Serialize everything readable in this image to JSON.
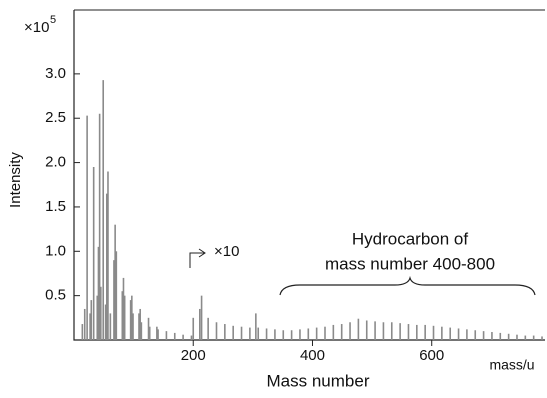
{
  "chart_data": {
    "type": "spectrum",
    "x_label": "Mass number",
    "y_label": "Intensity",
    "x_unit": "mass/u",
    "y_multiplier": "×10",
    "y_multiplier_exp": "5",
    "annotations": [
      "×10",
      "Hydrocarbon of",
      "mass number 400-800"
    ],
    "color": "#8a8a8a",
    "xlim": [
      0,
      790
    ],
    "xticks": [
      200,
      400,
      600
    ],
    "ylim": [
      0,
      3.72
    ],
    "yticks": [
      0.5,
      {
        "value": 1,
        "label": "1.0"
      },
      1.5,
      {
        "value": 2,
        "label": "2.0"
      },
      2.5,
      {
        "value": 3,
        "label": "3.0"
      }
    ],
    "x": [
      14,
      18,
      22,
      27,
      29,
      33,
      39,
      41,
      43,
      45,
      49,
      53,
      55,
      57,
      61,
      67,
      69,
      71,
      81,
      83,
      85,
      95,
      97,
      99,
      109,
      111,
      113,
      125,
      127,
      139,
      141,
      155,
      169,
      183,
      197,
      200,
      211,
      214,
      225,
      239,
      253,
      267,
      281,
      295,
      305,
      309,
      323,
      337,
      351,
      365,
      379,
      393,
      407,
      421,
      435,
      449,
      463,
      477,
      491,
      505,
      519,
      533,
      547,
      561,
      575,
      589,
      603,
      617,
      631,
      645,
      659,
      673,
      687,
      701,
      715,
      729,
      743,
      757,
      771,
      785
    ],
    "values": [
      0.18,
      0.35,
      2.53,
      0.3,
      0.45,
      1.95,
      0.5,
      1.05,
      2.55,
      0.6,
      2.93,
      0.4,
      1.65,
      1.9,
      0.3,
      0.9,
      1.3,
      1.0,
      0.55,
      0.7,
      0.5,
      0.45,
      0.5,
      0.3,
      0.3,
      0.35,
      0.2,
      0.25,
      0.15,
      0.15,
      0.12,
      0.1,
      0.08,
      0.06,
      0.05,
      0.25,
      0.35,
      0.5,
      0.25,
      0.2,
      0.18,
      0.16,
      0.15,
      0.14,
      0.3,
      0.14,
      0.13,
      0.12,
      0.11,
      0.11,
      0.12,
      0.13,
      0.14,
      0.15,
      0.17,
      0.18,
      0.2,
      0.24,
      0.22,
      0.21,
      0.2,
      0.2,
      0.19,
      0.18,
      0.17,
      0.17,
      0.16,
      0.15,
      0.14,
      0.13,
      0.12,
      0.11,
      0.1,
      0.09,
      0.08,
      0.07,
      0.06,
      0.05,
      0.05,
      0.04
    ]
  }
}
